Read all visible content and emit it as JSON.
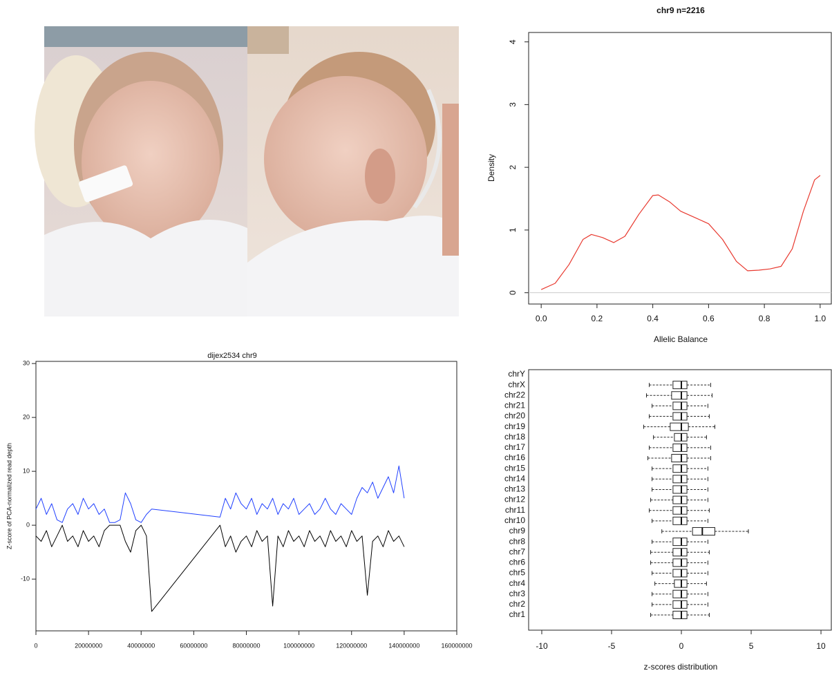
{
  "chart_data": [
    {
      "type": "line",
      "title": "chr9 n=2216",
      "x_label": "Allelic Balance",
      "y_label": "Density",
      "xlim": [
        -0.045,
        1.04
      ],
      "ylim": [
        -0.18,
        4.15
      ],
      "xticks": [
        {
          "value": 0,
          "label": "0.0"
        },
        0.2,
        0.4,
        0.6,
        0.8,
        {
          "value": 1,
          "label": "1.0"
        }
      ],
      "yticks": [
        0,
        1,
        2,
        3,
        4
      ],
      "hline": 0,
      "x": [
        0,
        0.05,
        0.1,
        0.15,
        0.18,
        0.22,
        0.26,
        0.3,
        0.35,
        0.4,
        0.42,
        0.46,
        0.5,
        0.55,
        0.6,
        0.65,
        0.7,
        0.74,
        0.78,
        0.82,
        0.86,
        0.9,
        0.94,
        0.98,
        1.0
      ],
      "series": [
        {
          "color": "#e8392f",
          "values": [
            0.05,
            0.15,
            0.45,
            0.85,
            0.93,
            0.88,
            0.8,
            0.9,
            1.25,
            1.55,
            1.56,
            1.45,
            1.3,
            1.2,
            1.1,
            0.85,
            0.5,
            0.35,
            0.36,
            0.38,
            0.42,
            0.7,
            1.3,
            1.8,
            1.87
          ]
        }
      ]
    },
    {
      "type": "line",
      "title": "dijex2534 chr9",
      "y_label": "Z-score of PCA-normalized read depth",
      "xlim": [
        0,
        160000000
      ],
      "ylim": [
        -19.6,
        30.4
      ],
      "xticks": [
        0,
        20000000,
        40000000,
        60000000,
        80000000,
        100000000,
        120000000,
        140000000,
        160000000
      ],
      "yticks": [
        -10,
        0,
        10,
        20,
        30
      ],
      "x": [
        0,
        2000000,
        4000000,
        6000000,
        8000000,
        10000000,
        12000000,
        14000000,
        16000000,
        18000000,
        20000000,
        22000000,
        24000000,
        26000000,
        28000000,
        30000000,
        32000000,
        34000000,
        36000000,
        38000000,
        40000000,
        42000000,
        44000000,
        70000000,
        72000000,
        74000000,
        76000000,
        78000000,
        80000000,
        82000000,
        84000000,
        86000000,
        88000000,
        90000000,
        92000000,
        94000000,
        96000000,
        98000000,
        100000000,
        102000000,
        104000000,
        106000000,
        108000000,
        110000000,
        112000000,
        114000000,
        116000000,
        118000000,
        120000000,
        122000000,
        124000000,
        126000000,
        128000000,
        130000000,
        132000000,
        134000000,
        136000000,
        138000000,
        140000000
      ],
      "series": [
        {
          "color": "#000000",
          "values": [
            -2,
            -3,
            -1,
            -4,
            -2,
            0,
            -3,
            -2,
            -4,
            -1,
            -3,
            -2,
            -4,
            -1,
            0,
            0,
            0,
            -3,
            -5,
            -1,
            0,
            -2,
            -16,
            0,
            -4,
            -2,
            -5,
            -3,
            -2,
            -4,
            -1,
            -3,
            -2,
            -15,
            -2,
            -4,
            -1,
            -3,
            -2,
            -4,
            -1,
            -3,
            -2,
            -4,
            -1,
            -3,
            -2,
            -4,
            -1,
            -3,
            -2,
            -13,
            -3,
            -2,
            -4,
            -1,
            -3,
            -2,
            -4
          ]
        },
        {
          "color": "#1f3fff",
          "values": [
            3,
            5,
            2,
            4,
            1,
            0.5,
            3,
            4,
            2,
            5,
            3,
            4,
            2,
            3,
            0.5,
            0.5,
            1,
            6,
            4,
            1,
            0.5,
            2,
            3,
            1.5,
            5,
            3,
            6,
            4,
            3,
            5,
            2,
            4,
            3,
            5,
            2,
            4,
            3,
            5,
            2,
            3,
            4,
            2,
            3,
            5,
            3,
            2,
            4,
            3,
            2,
            5,
            7,
            6,
            8,
            5,
            7,
            9,
            6,
            11,
            5
          ]
        }
      ]
    },
    {
      "type": "box",
      "x_label": "z-scores distribution",
      "xlim": [
        -10.94,
        10.74
      ],
      "xticks": [
        -10,
        -5,
        0,
        5,
        10
      ],
      "categories": [
        "chr1",
        "chr2",
        "chr3",
        "chr4",
        "chr5",
        "chr6",
        "chr7",
        "chr8",
        "chr9",
        "chr10",
        "chr11",
        "chr12",
        "chr13",
        "chr14",
        "chr15",
        "chr16",
        "chr17",
        "chr18",
        "chr19",
        "chr20",
        "chr21",
        "chr22",
        "chrX",
        "chrY"
      ],
      "boxes": [
        {
          "min": -2.2,
          "q1": -0.6,
          "median": 0,
          "q3": 0.4,
          "max": 2.0
        },
        {
          "min": -2.1,
          "q1": -0.6,
          "median": 0,
          "q3": 0.4,
          "max": 1.9
        },
        {
          "min": -2.1,
          "q1": -0.6,
          "median": 0,
          "q3": 0.4,
          "max": 1.9
        },
        {
          "min": -1.9,
          "q1": -0.5,
          "median": 0,
          "q3": 0.4,
          "max": 1.8
        },
        {
          "min": -2.1,
          "q1": -0.6,
          "median": 0,
          "q3": 0.4,
          "max": 1.9
        },
        {
          "min": -2.2,
          "q1": -0.6,
          "median": 0,
          "q3": 0.4,
          "max": 1.9
        },
        {
          "min": -2.2,
          "q1": -0.6,
          "median": 0,
          "q3": 0.4,
          "max": 2.0
        },
        {
          "min": -2.1,
          "q1": -0.6,
          "median": 0,
          "q3": 0.4,
          "max": 1.9
        },
        {
          "min": -1.4,
          "q1": 0.8,
          "median": 1.5,
          "q3": 2.4,
          "max": 4.8
        },
        {
          "min": -2.1,
          "q1": -0.6,
          "median": 0,
          "q3": 0.4,
          "max": 1.9
        },
        {
          "min": -2.3,
          "q1": -0.6,
          "median": 0,
          "q3": 0.4,
          "max": 2.0
        },
        {
          "min": -2.2,
          "q1": -0.6,
          "median": 0,
          "q3": 0.4,
          "max": 1.9
        },
        {
          "min": -2.1,
          "q1": -0.6,
          "median": 0,
          "q3": 0.4,
          "max": 1.9
        },
        {
          "min": -2.1,
          "q1": -0.6,
          "median": 0,
          "q3": 0.4,
          "max": 1.9
        },
        {
          "min": -2.1,
          "q1": -0.6,
          "median": 0,
          "q3": 0.4,
          "max": 1.9
        },
        {
          "min": -2.4,
          "q1": -0.7,
          "median": 0,
          "q3": 0.4,
          "max": 2.1
        },
        {
          "min": -2.3,
          "q1": -0.6,
          "median": 0,
          "q3": 0.4,
          "max": 2.1
        },
        {
          "min": -2.0,
          "q1": -0.5,
          "median": 0,
          "q3": 0.4,
          "max": 1.8
        },
        {
          "min": -2.7,
          "q1": -0.8,
          "median": 0,
          "q3": 0.5,
          "max": 2.4
        },
        {
          "min": -2.3,
          "q1": -0.6,
          "median": 0,
          "q3": 0.4,
          "max": 2.0
        },
        {
          "min": -2.1,
          "q1": -0.6,
          "median": 0,
          "q3": 0.4,
          "max": 1.9
        },
        {
          "min": -2.5,
          "q1": -0.7,
          "median": 0,
          "q3": 0.4,
          "max": 2.2
        },
        {
          "min": -2.3,
          "q1": -0.6,
          "median": 0,
          "q3": 0.4,
          "max": 2.1
        },
        null
      ]
    }
  ]
}
